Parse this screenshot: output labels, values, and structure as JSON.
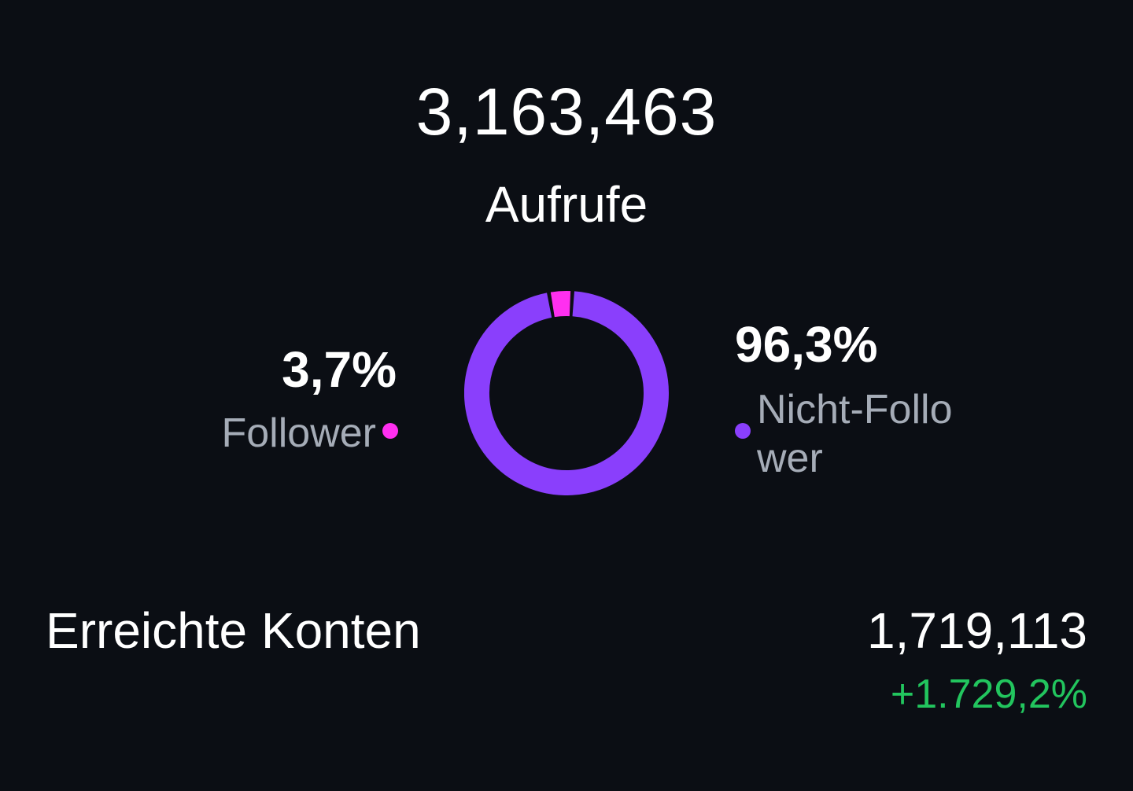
{
  "views": {
    "total": "3,163,463",
    "label": "Aufrufe"
  },
  "split": {
    "follower": {
      "percent_text": "3,7%",
      "label": "Follower",
      "share": 0.037,
      "color": "#ff2ff0"
    },
    "non_follower": {
      "percent_text": "96,3%",
      "label": "Nicht-Follower",
      "share": 0.963,
      "color": "#8a3ffc"
    }
  },
  "reach": {
    "label": "Erreichte Konten",
    "value": "1,719,113",
    "change": "+1.729,2%",
    "change_color": "#22c55e"
  }
}
